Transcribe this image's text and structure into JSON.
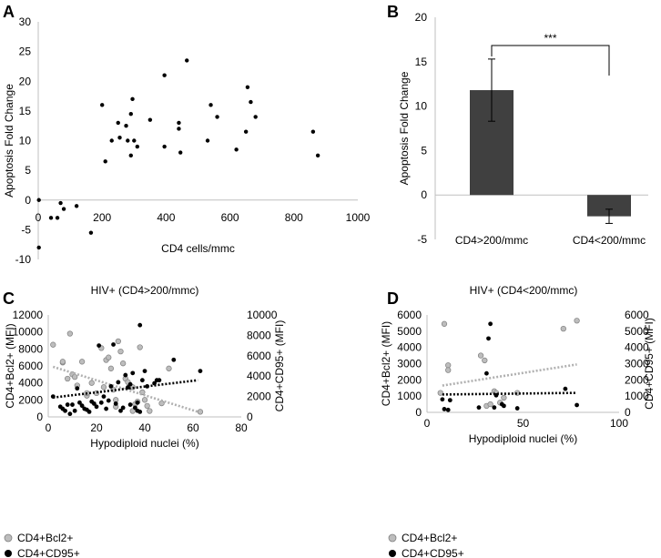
{
  "chart_data": [
    {
      "panel": "A",
      "type": "scatter",
      "title": "",
      "xlabel": "CD4 cells/mmc",
      "ylabel": "Apoptosis Fold Change",
      "xlim": [
        0,
        1000
      ],
      "ylim": [
        -10,
        30
      ],
      "xticks": [
        "0",
        "200",
        "400",
        "600",
        "800",
        "1000"
      ],
      "yticks": [
        "-10",
        "-5",
        "0",
        "5",
        "10",
        "15",
        "20",
        "25",
        "30"
      ],
      "points": [
        [
          2,
          0
        ],
        [
          2,
          -8
        ],
        [
          40,
          -3
        ],
        [
          60,
          -3
        ],
        [
          70,
          -0.5
        ],
        [
          80,
          -1.5
        ],
        [
          120,
          -1
        ],
        [
          165,
          -5.5
        ],
        [
          200,
          16
        ],
        [
          210,
          6.5
        ],
        [
          230,
          10
        ],
        [
          250,
          13
        ],
        [
          255,
          10.5
        ],
        [
          275,
          12.5
        ],
        [
          280,
          10
        ],
        [
          290,
          14.5
        ],
        [
          290,
          7.5
        ],
        [
          295,
          17
        ],
        [
          300,
          10
        ],
        [
          310,
          9
        ],
        [
          350,
          13.5
        ],
        [
          395,
          21
        ],
        [
          395,
          9
        ],
        [
          440,
          13
        ],
        [
          440,
          12
        ],
        [
          445,
          8
        ],
        [
          465,
          23.5
        ],
        [
          530,
          10
        ],
        [
          540,
          16
        ],
        [
          560,
          14
        ],
        [
          620,
          8.5
        ],
        [
          650,
          11.5
        ],
        [
          655,
          19
        ],
        [
          665,
          16.5
        ],
        [
          680,
          14
        ],
        [
          860,
          11.5
        ],
        [
          875,
          7.5
        ]
      ]
    },
    {
      "panel": "B",
      "type": "bar",
      "title": "",
      "xlabel": "",
      "ylabel": "Apoptosis Fold Change",
      "ylim": [
        -5,
        20
      ],
      "yticks": [
        "-5",
        "0",
        "5",
        "10",
        "15",
        "20"
      ],
      "categories": [
        "CD4>200/mmc",
        "CD4<200/mmc"
      ],
      "values": [
        11.8,
        -2.4
      ],
      "error": [
        3.5,
        0.8
      ],
      "bar_color": "#404040",
      "significance": "***"
    },
    {
      "panel": "C",
      "type": "scatter",
      "title": "HIV+ (CD4>200/mmc)",
      "xlabel": "Hypodiploid nuclei (%)",
      "ylabel": "CD4+Bcl2+ (MFI)",
      "y2label": "CD4+CD95+ (MFI)",
      "xlim": [
        0,
        80
      ],
      "ylim": [
        0,
        12000
      ],
      "y2lim": [
        0,
        10000
      ],
      "xticks": [
        "0",
        "20",
        "40",
        "60",
        "80"
      ],
      "yticks": [
        "0",
        "2000",
        "4000",
        "6000",
        "8000",
        "10000",
        "12000"
      ],
      "y2ticks": [
        "0",
        "2000",
        "4000",
        "6000",
        "8000",
        "10000"
      ],
      "legend": [
        "CD4+Bcl2+",
        "CD4+CD95+"
      ],
      "series": [
        {
          "name": "CD4+Bcl2+",
          "axis": "left",
          "color": "#bdbdbd",
          "trend": [
            [
              2,
              5900
            ],
            [
              62,
              600
            ]
          ],
          "points": [
            [
              2,
              8500
            ],
            [
              6,
              6400
            ],
            [
              6,
              6500
            ],
            [
              9,
              9800
            ],
            [
              8,
              4500
            ],
            [
              10,
              5000
            ],
            [
              11,
              4700
            ],
            [
              12,
              3700
            ],
            [
              14,
              6500
            ],
            [
              16,
              2500
            ],
            [
              16,
              2800
            ],
            [
              18,
              4000
            ],
            [
              20,
              2800
            ],
            [
              22,
              8100
            ],
            [
              23,
              3500
            ],
            [
              24,
              6700
            ],
            [
              25,
              7000
            ],
            [
              26,
              5700
            ],
            [
              27,
              3200
            ],
            [
              28,
              2000
            ],
            [
              28,
              1200
            ],
            [
              29,
              8900
            ],
            [
              30,
              7700
            ],
            [
              31,
              6300
            ],
            [
              32,
              4500
            ],
            [
              33,
              4100
            ],
            [
              34,
              3600
            ],
            [
              35,
              3500
            ],
            [
              35,
              700
            ],
            [
              36,
              1500
            ],
            [
              37,
              1800
            ],
            [
              38,
              8200
            ],
            [
              39,
              2900
            ],
            [
              40,
              2000
            ],
            [
              41,
              1300
            ],
            [
              42,
              700
            ],
            [
              47,
              1600
            ],
            [
              50,
              5700
            ],
            [
              63,
              600
            ]
          ]
        },
        {
          "name": "CD4+CD95+",
          "axis": "right",
          "color": "#000000",
          "trend": [
            [
              2,
              1900
            ],
            [
              62,
              3600
            ]
          ],
          "points": [
            [
              2,
              2000
            ],
            [
              5,
              1000
            ],
            [
              6,
              800
            ],
            [
              7,
              600
            ],
            [
              8,
              1200
            ],
            [
              9,
              300
            ],
            [
              10,
              1200
            ],
            [
              11,
              600
            ],
            [
              12,
              2800
            ],
            [
              13,
              1400
            ],
            [
              14,
              1100
            ],
            [
              15,
              800
            ],
            [
              16,
              700
            ],
            [
              17,
              500
            ],
            [
              18,
              1500
            ],
            [
              19,
              1300
            ],
            [
              20,
              1000
            ],
            [
              21,
              7000
            ],
            [
              22,
              1400
            ],
            [
              23,
              2000
            ],
            [
              24,
              800
            ],
            [
              25,
              1600
            ],
            [
              26,
              3000
            ],
            [
              27,
              7100
            ],
            [
              28,
              1300
            ],
            [
              29,
              3400
            ],
            [
              30,
              600
            ],
            [
              31,
              900
            ],
            [
              32,
              4100
            ],
            [
              33,
              2900
            ],
            [
              34,
              1200
            ],
            [
              34,
              3200
            ],
            [
              35,
              4300
            ],
            [
              36,
              900
            ],
            [
              37,
              600
            ],
            [
              37,
              1400
            ],
            [
              38,
              9000
            ],
            [
              38,
              500
            ],
            [
              39,
              3600
            ],
            [
              40,
              4500
            ],
            [
              41,
              3000
            ],
            [
              44,
              3300
            ],
            [
              45,
              3600
            ],
            [
              46,
              3600
            ],
            [
              52,
              5600
            ],
            [
              63,
              4500
            ]
          ]
        }
      ]
    },
    {
      "panel": "D",
      "type": "scatter",
      "title": "HIV+ (CD4<200/mmc)",
      "xlabel": "Hypodiploid nuclei (%)",
      "ylabel": "CD4+Bcl2+ (MFI)",
      "y2label": "CD4+CD95+ (MFI)",
      "xlim": [
        0,
        100
      ],
      "ylim": [
        0,
        6000
      ],
      "y2lim": [
        0,
        6000
      ],
      "xticks": [
        "0",
        "50",
        "100"
      ],
      "yticks": [
        "0",
        "1000",
        "2000",
        "3000",
        "4000",
        "5000",
        "6000"
      ],
      "y2ticks": [
        "0",
        "1000",
        "2000",
        "3000",
        "4000",
        "5000",
        "6000"
      ],
      "legend": [
        "CD4+Bcl2+",
        "CD4+CD95+"
      ],
      "series": [
        {
          "name": "CD4+Bcl2+",
          "axis": "left",
          "color": "#bdbdbd",
          "trend": [
            [
              8,
              1650
            ],
            [
              78,
              2950
            ]
          ],
          "points": [
            [
              7,
              1200
            ],
            [
              9,
              5450
            ],
            [
              11,
              2900
            ],
            [
              11,
              2600
            ],
            [
              28,
              3500
            ],
            [
              30,
              3200
            ],
            [
              31,
              400
            ],
            [
              33,
              500
            ],
            [
              35,
              1300
            ],
            [
              36,
              1200
            ],
            [
              38,
              600
            ],
            [
              40,
              900
            ],
            [
              47,
              1200
            ],
            [
              71,
              5150
            ],
            [
              78,
              5650
            ]
          ]
        },
        {
          "name": "CD4+CD95+",
          "axis": "right",
          "color": "#000000",
          "trend": [
            [
              8,
              1100
            ],
            [
              78,
              1200
            ]
          ],
          "points": [
            [
              8,
              800
            ],
            [
              9,
              200
            ],
            [
              11,
              150
            ],
            [
              12,
              750
            ],
            [
              27,
              300
            ],
            [
              31,
              2400
            ],
            [
              32,
              4550
            ],
            [
              33,
              5450
            ],
            [
              35,
              300
            ],
            [
              36,
              1050
            ],
            [
              39,
              500
            ],
            [
              40,
              400
            ],
            [
              47,
              250
            ],
            [
              72,
              1450
            ],
            [
              78,
              450
            ]
          ]
        }
      ]
    }
  ]
}
